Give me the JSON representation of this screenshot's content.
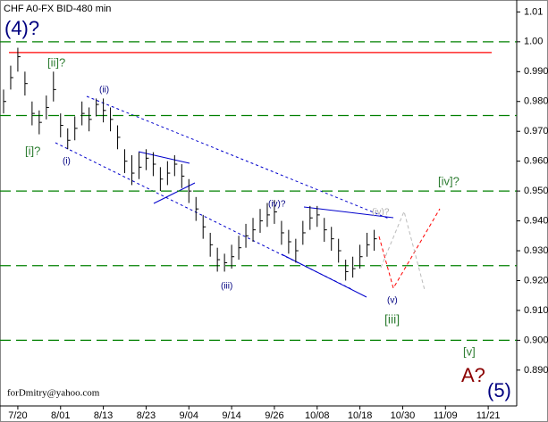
{
  "chart_data": {
    "type": "ohlc",
    "title": "CHF A0-FX BID-480 min",
    "x": [
      1,
      3,
      5,
      7,
      9,
      11,
      13,
      15,
      17,
      19,
      21,
      23,
      25,
      27,
      29,
      31,
      33,
      35,
      37,
      39,
      41,
      43,
      45,
      47,
      49,
      51,
      53,
      55,
      57,
      59,
      61,
      63,
      65,
      67,
      69,
      71,
      73,
      75,
      77,
      79,
      81,
      83,
      85,
      87,
      89,
      91,
      93,
      95,
      97,
      99,
      101,
      103,
      105
    ],
    "close": [
      0.98,
      0.988,
      0.995,
      0.986,
      0.976,
      0.973,
      0.978,
      0.984,
      0.972,
      0.967,
      0.971,
      0.976,
      0.974,
      0.979,
      0.977,
      0.974,
      0.968,
      0.96,
      0.956,
      0.958,
      0.961,
      0.959,
      0.954,
      0.956,
      0.959,
      0.955,
      0.95,
      0.944,
      0.938,
      0.932,
      0.927,
      0.926,
      0.928,
      0.931,
      0.935,
      0.937,
      0.94,
      0.942,
      0.943,
      0.936,
      0.933,
      0.93,
      0.936,
      0.941,
      0.942,
      0.937,
      0.934,
      0.93,
      0.923,
      0.924,
      0.928,
      0.932,
      0.934
    ],
    "high": [
      0.984,
      0.992,
      0.998,
      0.99,
      0.98,
      0.977,
      0.982,
      0.99,
      0.976,
      0.971,
      0.975,
      0.98,
      0.978,
      0.981,
      0.981,
      0.978,
      0.972,
      0.964,
      0.962,
      0.963,
      0.964,
      0.963,
      0.958,
      0.96,
      0.962,
      0.959,
      0.954,
      0.948,
      0.942,
      0.936,
      0.931,
      0.929,
      0.932,
      0.935,
      0.939,
      0.941,
      0.944,
      0.946,
      0.947,
      0.94,
      0.937,
      0.934,
      0.94,
      0.945,
      0.945,
      0.941,
      0.938,
      0.934,
      0.927,
      0.928,
      0.932,
      0.936,
      0.937
    ],
    "low": [
      0.976,
      0.984,
      0.99,
      0.982,
      0.972,
      0.969,
      0.974,
      0.98,
      0.968,
      0.964,
      0.967,
      0.972,
      0.97,
      0.975,
      0.973,
      0.97,
      0.964,
      0.956,
      0.952,
      0.954,
      0.957,
      0.955,
      0.95,
      0.952,
      0.955,
      0.951,
      0.946,
      0.94,
      0.934,
      0.928,
      0.923,
      0.923,
      0.924,
      0.927,
      0.931,
      0.933,
      0.936,
      0.938,
      0.939,
      0.932,
      0.929,
      0.926,
      0.932,
      0.937,
      0.938,
      0.933,
      0.93,
      0.926,
      0.92,
      0.921,
      0.924,
      0.928,
      0.93
    ],
    "color": "#000000",
    "xlim": [
      0,
      145
    ],
    "xticks": [
      {
        "value": 5,
        "label": "7/20"
      },
      {
        "value": 17,
        "label": "8/01"
      },
      {
        "value": 29,
        "label": "8/13"
      },
      {
        "value": 41,
        "label": "8/23"
      },
      {
        "value": 53,
        "label": "9/04"
      },
      {
        "value": 65,
        "label": "9/14"
      },
      {
        "value": 77,
        "label": "9/26"
      },
      {
        "value": 89,
        "label": "10/08"
      },
      {
        "value": 101,
        "label": "10/18"
      },
      {
        "value": 113,
        "label": "10/30"
      },
      {
        "value": 125,
        "label": "11/09"
      },
      {
        "value": 137,
        "label": "11/21"
      }
    ],
    "ylim": [
      0.878,
      1.014
    ],
    "yticks": [
      1.01,
      {
        "value": 1.0,
        "label": "1.00"
      },
      {
        "value": 0.99,
        "label": "0.990"
      },
      {
        "value": 0.98,
        "label": "0.980"
      },
      {
        "value": 0.97,
        "label": "0.970"
      },
      {
        "value": 0.96,
        "label": "0.960"
      },
      {
        "value": 0.95,
        "label": "0.950"
      },
      {
        "value": 0.94,
        "label": "0.940"
      },
      {
        "value": 0.93,
        "label": "0.930"
      },
      {
        "value": 0.92,
        "label": "0.920"
      },
      {
        "value": 0.91,
        "label": "0.910"
      },
      {
        "value": 0.9,
        "label": "0.900"
      },
      {
        "value": 0.89,
        "label": "0.890"
      }
    ],
    "levels": [
      1.0,
      0.9753,
      0.95,
      0.925,
      0.9
    ],
    "level_color": "#008000",
    "resistance": 0.9964,
    "resistance_color": "#ff0000",
    "annotations": [
      "(4)?",
      "[ii]?",
      "[i]?",
      "(ii)",
      "(i)",
      "(iii)",
      "(iv)?",
      "(iv)?",
      "(v)",
      "[iii]",
      "[iv]?",
      "[v]",
      "A?",
      "(5)"
    ],
    "footer": "forDmitry@yahoo.com"
  }
}
